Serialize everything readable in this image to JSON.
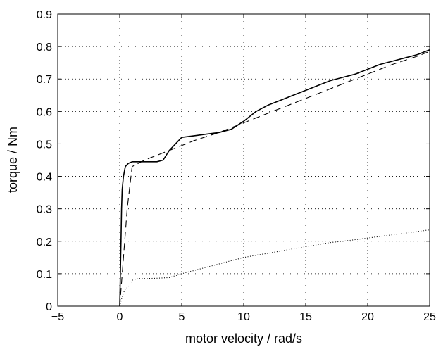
{
  "chart_data": {
    "type": "line",
    "title": "",
    "xlabel": "motor velocity / rad/s",
    "ylabel": "torque / Nm",
    "xlim": [
      -5,
      25
    ],
    "ylim": [
      0,
      0.9
    ],
    "xticks": [
      -5,
      0,
      5,
      10,
      15,
      20,
      25
    ],
    "yticks": [
      0,
      0.1,
      0.2,
      0.3,
      0.4,
      0.5,
      0.6,
      0.7,
      0.8,
      0.9
    ],
    "xtick_labels": [
      "−5",
      "0",
      "5",
      "10",
      "15",
      "20",
      "25"
    ],
    "ytick_labels": [
      "0",
      "0.1",
      "0.2",
      "0.3",
      "0.4",
      "0.5",
      "0.6",
      "0.7",
      "0.8",
      "0.9"
    ],
    "grid": true,
    "grid_style": "dotted",
    "legend": "none",
    "series": [
      {
        "style": "solid",
        "color": "#000000",
        "x": [
          0,
          0.05,
          0.1,
          0.15,
          0.2,
          0.3,
          0.45,
          0.7,
          1.0,
          1.5,
          2.0,
          2.5,
          3.0,
          3.5,
          4.0,
          4.5,
          5.0,
          6.0,
          7.0,
          8.0,
          9.0,
          10.0,
          11.0,
          12.0,
          13.0,
          14.0,
          15.0,
          16.0,
          17.0,
          18.0,
          19.0,
          20.0,
          21.0,
          22.0,
          23.0,
          24.0,
          25.0
        ],
        "y": [
          0.0,
          0.1,
          0.2,
          0.3,
          0.36,
          0.4,
          0.43,
          0.44,
          0.445,
          0.445,
          0.445,
          0.445,
          0.445,
          0.45,
          0.48,
          0.5,
          0.52,
          0.525,
          0.53,
          0.535,
          0.545,
          0.57,
          0.6,
          0.62,
          0.635,
          0.65,
          0.665,
          0.68,
          0.695,
          0.705,
          0.715,
          0.73,
          0.745,
          0.755,
          0.765,
          0.775,
          0.79
        ]
      },
      {
        "style": "dashed",
        "color": "#000000",
        "x": [
          0,
          0.3,
          0.6,
          1.0,
          2.0,
          3.0,
          4.0,
          5.0,
          6.0,
          8.0,
          10.0,
          12.0,
          14.0,
          16.0,
          18.0,
          20.0,
          22.0,
          24.0,
          25.0
        ],
        "y": [
          0.0,
          0.15,
          0.3,
          0.43,
          0.45,
          0.465,
          0.48,
          0.495,
          0.51,
          0.535,
          0.565,
          0.595,
          0.625,
          0.655,
          0.685,
          0.715,
          0.745,
          0.77,
          0.785
        ]
      },
      {
        "style": "dotted",
        "color": "#000000",
        "x": [
          0,
          0.2,
          0.4,
          0.7,
          1.0,
          1.5,
          2.0,
          3.0,
          4.0,
          5.0,
          6.0,
          7.0,
          8.0,
          9.0,
          10.0,
          11.0,
          12.0,
          13.0,
          14.0,
          15.0,
          16.0,
          17.0,
          18.0,
          19.0,
          20.0,
          21.0,
          22.0,
          23.0,
          24.0,
          25.0
        ],
        "y": [
          0.0,
          0.03,
          0.05,
          0.06,
          0.08,
          0.085,
          0.085,
          0.086,
          0.088,
          0.1,
          0.11,
          0.12,
          0.13,
          0.14,
          0.15,
          0.157,
          0.163,
          0.17,
          0.177,
          0.183,
          0.19,
          0.196,
          0.2,
          0.205,
          0.21,
          0.215,
          0.22,
          0.225,
          0.23,
          0.235
        ]
      }
    ]
  }
}
